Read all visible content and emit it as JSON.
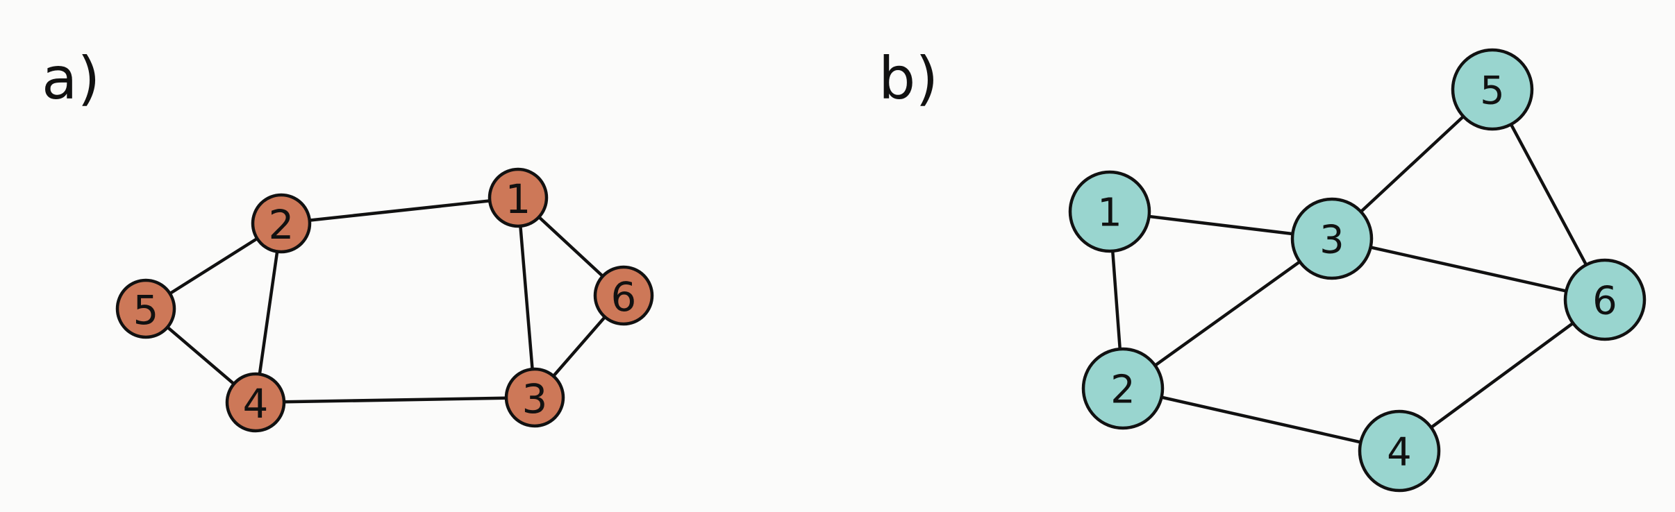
{
  "panels": [
    {
      "id": "a",
      "label": "a)",
      "node_color": "#cd7858",
      "nodes": [
        {
          "id": "1",
          "label": "1"
        },
        {
          "id": "2",
          "label": "2"
        },
        {
          "id": "3",
          "label": "3"
        },
        {
          "id": "4",
          "label": "4"
        },
        {
          "id": "5",
          "label": "5"
        },
        {
          "id": "6",
          "label": "6"
        }
      ],
      "edges": [
        [
          "2",
          "1"
        ],
        [
          "2",
          "5"
        ],
        [
          "2",
          "4"
        ],
        [
          "5",
          "4"
        ],
        [
          "4",
          "3"
        ],
        [
          "1",
          "3"
        ],
        [
          "1",
          "6"
        ],
        [
          "6",
          "3"
        ]
      ]
    },
    {
      "id": "b",
      "label": "b)",
      "node_color": "#99d5cf",
      "nodes": [
        {
          "id": "1",
          "label": "1"
        },
        {
          "id": "2",
          "label": "2"
        },
        {
          "id": "3",
          "label": "3"
        },
        {
          "id": "4",
          "label": "4"
        },
        {
          "id": "5",
          "label": "5"
        },
        {
          "id": "6",
          "label": "6"
        }
      ],
      "edges": [
        [
          "1",
          "3"
        ],
        [
          "1",
          "2"
        ],
        [
          "2",
          "3"
        ],
        [
          "2",
          "4"
        ],
        [
          "3",
          "5"
        ],
        [
          "3",
          "6"
        ],
        [
          "5",
          "6"
        ],
        [
          "4",
          "6"
        ]
      ]
    }
  ]
}
